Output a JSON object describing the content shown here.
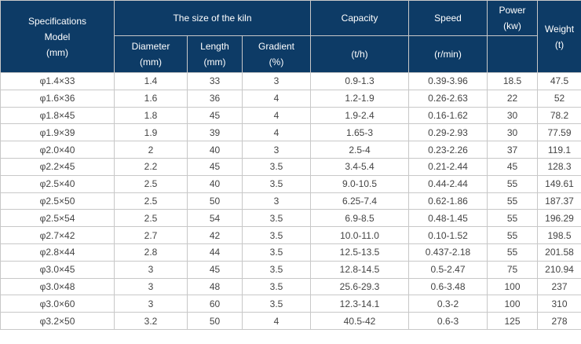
{
  "header": {
    "model": [
      "Specifications",
      "Model",
      "(mm)"
    ],
    "kiln_size": "The size of the kiln",
    "diameter": [
      "Diameter",
      "(mm)"
    ],
    "length": [
      "Length",
      "(mm)"
    ],
    "gradient": [
      "Gradient",
      "(%)"
    ],
    "capacity": "Capacity",
    "capacity_unit": "(t/h)",
    "speed": "Speed",
    "speed_unit": "(r/min)",
    "power": [
      "Power",
      "(kw)"
    ],
    "weight": [
      "Weight",
      "(t)"
    ]
  },
  "rows": [
    {
      "model": "φ1.4×33",
      "diameter": "1.4",
      "length": "33",
      "gradient": "3",
      "capacity": "0.9-1.3",
      "speed": "0.39-3.96",
      "power": "18.5",
      "weight": "47.5"
    },
    {
      "model": "φ1.6×36",
      "diameter": "1.6",
      "length": "36",
      "gradient": "4",
      "capacity": "1.2-1.9",
      "speed": "0.26-2.63",
      "power": "22",
      "weight": "52"
    },
    {
      "model": "φ1.8×45",
      "diameter": "1.8",
      "length": "45",
      "gradient": "4",
      "capacity": "1.9-2.4",
      "speed": "0.16-1.62",
      "power": "30",
      "weight": "78.2"
    },
    {
      "model": "φ1.9×39",
      "diameter": "1.9",
      "length": "39",
      "gradient": "4",
      "capacity": "1.65-3",
      "speed": "0.29-2.93",
      "power": "30",
      "weight": "77.59"
    },
    {
      "model": "φ2.0×40",
      "diameter": "2",
      "length": "40",
      "gradient": "3",
      "capacity": "2.5-4",
      "speed": "0.23-2.26",
      "power": "37",
      "weight": "119.1"
    },
    {
      "model": "φ2.2×45",
      "diameter": "2.2",
      "length": "45",
      "gradient": "3.5",
      "capacity": "3.4-5.4",
      "speed": "0.21-2.44",
      "power": "45",
      "weight": "128.3"
    },
    {
      "model": "φ2.5×40",
      "diameter": "2.5",
      "length": "40",
      "gradient": "3.5",
      "capacity": "9.0-10.5",
      "speed": "0.44-2.44",
      "power": "55",
      "weight": "149.61"
    },
    {
      "model": "φ2.5×50",
      "diameter": "2.5",
      "length": "50",
      "gradient": "3",
      "capacity": "6.25-7.4",
      "speed": "0.62-1.86",
      "power": "55",
      "weight": "187.37"
    },
    {
      "model": "φ2.5×54",
      "diameter": "2.5",
      "length": "54",
      "gradient": "3.5",
      "capacity": "6.9-8.5",
      "speed": "0.48-1.45",
      "power": "55",
      "weight": "196.29"
    },
    {
      "model": "φ2.7×42",
      "diameter": "2.7",
      "length": "42",
      "gradient": "3.5",
      "capacity": "10.0-11.0",
      "speed": "0.10-1.52",
      "power": "55",
      "weight": "198.5"
    },
    {
      "model": "φ2.8×44",
      "diameter": "2.8",
      "length": "44",
      "gradient": "3.5",
      "capacity": "12.5-13.5",
      "speed": "0.437-2.18",
      "power": "55",
      "weight": "201.58"
    },
    {
      "model": "φ3.0×45",
      "diameter": "3",
      "length": "45",
      "gradient": "3.5",
      "capacity": "12.8-14.5",
      "speed": "0.5-2.47",
      "power": "75",
      "weight": "210.94"
    },
    {
      "model": "φ3.0×48",
      "diameter": "3",
      "length": "48",
      "gradient": "3.5",
      "capacity": "25.6-29.3",
      "speed": "0.6-3.48",
      "power": "100",
      "weight": "237"
    },
    {
      "model": "φ3.0×60",
      "diameter": "3",
      "length": "60",
      "gradient": "3.5",
      "capacity": "12.3-14.1",
      "speed": "0.3-2",
      "power": "100",
      "weight": "310"
    },
    {
      "model": "φ3.2×50",
      "diameter": "3.2",
      "length": "50",
      "gradient": "4",
      "capacity": "40.5-42",
      "speed": "0.6-3",
      "power": "125",
      "weight": "278"
    }
  ]
}
